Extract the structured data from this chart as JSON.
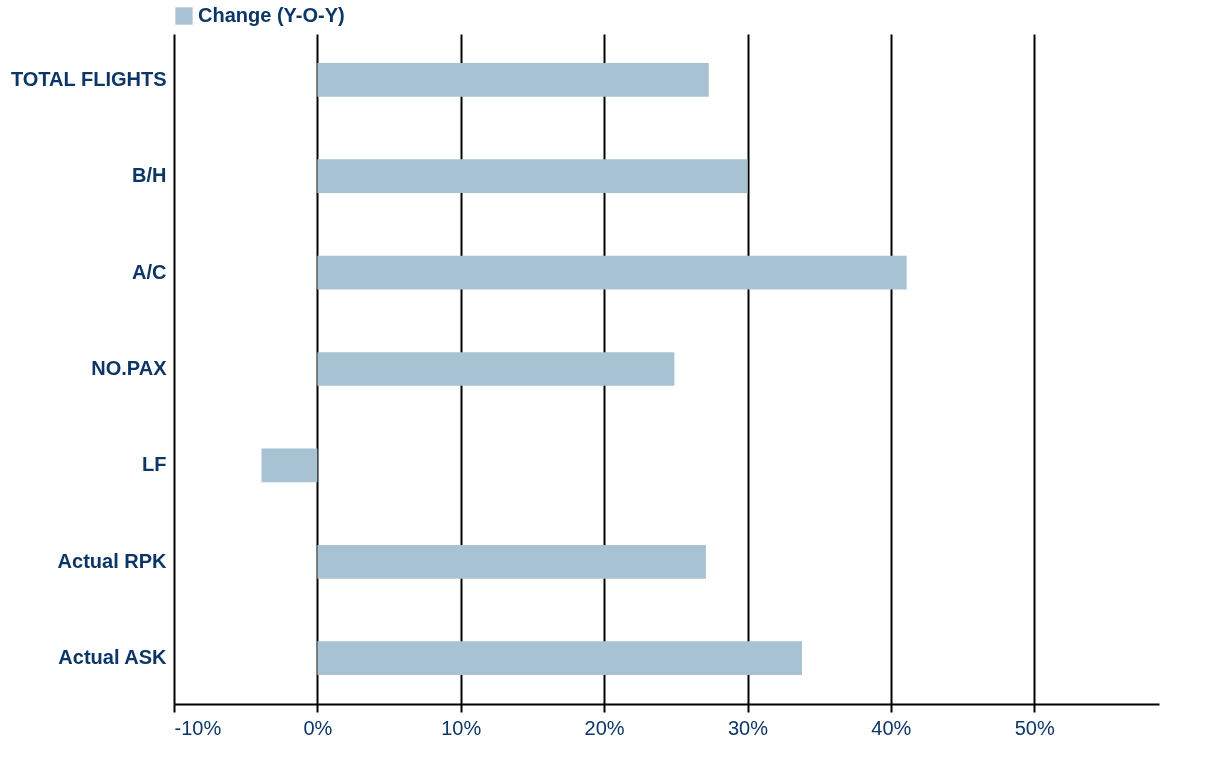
{
  "chart_data": {
    "type": "bar",
    "orientation": "horizontal",
    "categories": [
      "TOTAL FLIGHTS",
      "B/H",
      "A/C",
      "NO.PAX",
      "LF",
      "Actual RPK",
      "Actual ASK"
    ],
    "series": [
      {
        "name": "Change (Y-O-Y)",
        "color": "#a7c3d3",
        "values": [
          27.3,
          30.0,
          41.1,
          24.9,
          -3.9,
          27.1,
          33.8
        ]
      }
    ],
    "xlim": [
      -10,
      58.7
    ],
    "xticks": [
      {
        "value": -10,
        "label": "-10%"
      },
      {
        "value": 0,
        "label": "0%"
      },
      {
        "value": 10,
        "label": "10%"
      },
      {
        "value": 20,
        "label": "20%"
      },
      {
        "value": 30,
        "label": "30%"
      },
      {
        "value": 40,
        "label": "40%"
      },
      {
        "value": 50,
        "label": "50%"
      }
    ],
    "grid": "x",
    "legend": "top"
  }
}
